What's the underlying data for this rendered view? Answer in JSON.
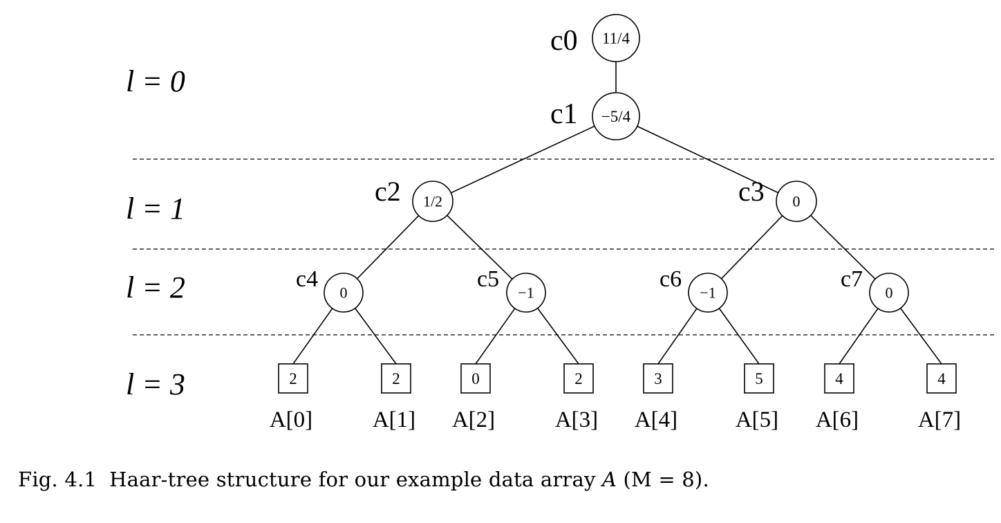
{
  "level_labels": [
    "l = 0",
    "l = 1",
    "l = 2",
    "l = 3"
  ],
  "coefficients": [
    {
      "name": "c0",
      "value": "11/4"
    },
    {
      "name": "c1",
      "value": "−5/4"
    },
    {
      "name": "c2",
      "value": "1/2"
    },
    {
      "name": "c3",
      "value": "0"
    },
    {
      "name": "c4",
      "value": "0"
    },
    {
      "name": "c5",
      "value": "−1"
    },
    {
      "name": "c6",
      "value": "−1"
    },
    {
      "name": "c7",
      "value": "0"
    }
  ],
  "leaves": [
    {
      "value": "2",
      "label": "A[0]"
    },
    {
      "value": "2",
      "label": "A[1]"
    },
    {
      "value": "0",
      "label": "A[2]"
    },
    {
      "value": "2",
      "label": "A[3]"
    },
    {
      "value": "3",
      "label": "A[4]"
    },
    {
      "value": "5",
      "label": "A[5]"
    },
    {
      "value": "4",
      "label": "A[6]"
    },
    {
      "value": "4",
      "label": "A[7]"
    }
  ],
  "caption": {
    "number": "Fig. 4.1",
    "text": "Haar-tree structure for our example data array ",
    "array_symbol": "A",
    "paren_content": "(M = 8)."
  }
}
